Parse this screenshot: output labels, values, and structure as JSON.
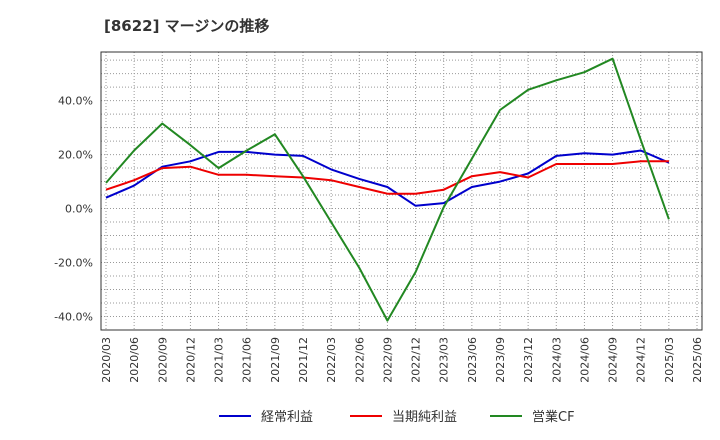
{
  "chart_data": {
    "type": "line",
    "title": "[8622]  マージンの推移",
    "xlabel": "",
    "ylabel": "",
    "x": [
      "2020/03",
      "2020/06",
      "2020/09",
      "2020/12",
      "2021/03",
      "2021/06",
      "2021/09",
      "2021/12",
      "2022/03",
      "2022/06",
      "2022/09",
      "2022/12",
      "2023/03",
      "2023/06",
      "2023/09",
      "2023/12",
      "2024/03",
      "2024/06",
      "2024/09",
      "2024/12",
      "2025/03",
      "2025/06"
    ],
    "ylim": [
      -45,
      58
    ],
    "yticks": [
      -40,
      -20,
      0,
      20,
      40
    ],
    "ytick_labels": [
      "-40.0%",
      "-20.0%",
      "0.0%",
      "20.0%",
      "40.0%"
    ],
    "grid": true,
    "legend_position": "bottom",
    "series": [
      {
        "name": "経常利益",
        "color": "#0000cc",
        "values": [
          4.0,
          8.5,
          15.5,
          17.5,
          21.0,
          21.0,
          20.0,
          19.5,
          14.5,
          11.0,
          8.0,
          1.0,
          2.0,
          8.0,
          10.0,
          13.0,
          19.5,
          20.5,
          20.0,
          21.5,
          17.0,
          null
        ]
      },
      {
        "name": "当期純利益",
        "color": "#ee0000",
        "values": [
          7.0,
          10.5,
          15.0,
          15.5,
          12.5,
          12.5,
          12.0,
          11.5,
          10.5,
          8.0,
          5.5,
          5.5,
          7.0,
          12.0,
          13.5,
          11.5,
          16.5,
          16.5,
          16.5,
          17.5,
          17.5,
          null
        ]
      },
      {
        "name": "営業CF",
        "color": "#228822",
        "values": [
          9.5,
          21.5,
          31.5,
          23.5,
          15.0,
          21.5,
          27.5,
          12.0,
          -5.0,
          -22.0,
          -41.5,
          -23.5,
          0.5,
          18.5,
          36.5,
          44.0,
          47.5,
          50.5,
          55.5,
          25.5,
          -4.0,
          null
        ]
      }
    ]
  }
}
